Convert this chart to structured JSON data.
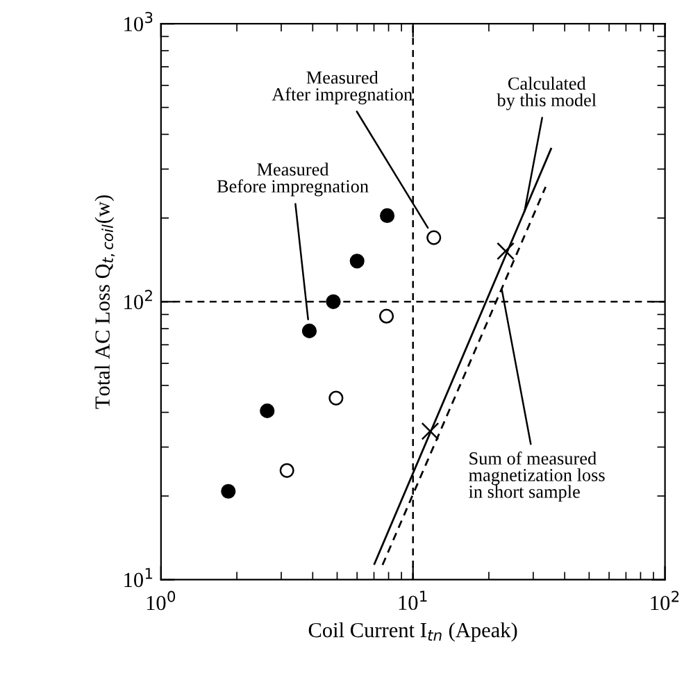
{
  "chart_data": {
    "type": "scatter",
    "xlabel": "Coil Current I$_{tn}$ (Apeak)",
    "ylabel": "Total AC Loss Q$_{t,coil}$(w)",
    "log": "xy",
    "xlim": [
      1,
      100
    ],
    "ylim": [
      10,
      1000
    ],
    "xticks": [
      {
        "value": 1,
        "label": "10$^{0}$"
      },
      {
        "value": 10,
        "label": "10$^{1}$"
      },
      {
        "value": 100,
        "label": "10$^{2}$"
      }
    ],
    "yticks": [
      {
        "value": 10,
        "label": "10$^{1}$"
      },
      {
        "value": 100,
        "label": "10$^{2}$"
      },
      {
        "value": 1000,
        "label": "10$^{3}$"
      }
    ],
    "grid": false,
    "series": [
      {
        "type": "scatter",
        "marker": "circle",
        "color": "#000000",
        "x": [
          1.85,
          2.64,
          3.88,
          4.83,
          6.0,
          7.9
        ],
        "values": [
          20.8,
          40.5,
          78.5,
          100,
          140,
          204
        ]
      },
      {
        "type": "scatter",
        "marker": "circle",
        "color": "#ffffff",
        "x": [
          3.16,
          4.95,
          7.85,
          12.1
        ],
        "values": [
          24.7,
          45,
          88.7,
          170
        ]
      },
      {
        "type": "line",
        "marker": "none",
        "line_style": "solid",
        "color": "#000000",
        "x": [
          7.03,
          35.3
        ],
        "values": [
          11.4,
          355
        ]
      },
      {
        "type": "scatter",
        "marker": "cross",
        "color": "#000000",
        "x": [
          11.7,
          23.3
        ],
        "values": [
          34.2,
          152
        ]
      },
      {
        "type": "line",
        "marker": "none",
        "line_style": "dashed",
        "color": "#000000",
        "x": [
          7.57,
          33.6
        ],
        "values": [
          11.3,
          259
        ]
      }
    ],
    "ref_lines": [
      {
        "axis": "x",
        "value": 10,
        "line_style": "dashed",
        "color": "#000000"
      },
      {
        "axis": "y",
        "value": 100,
        "line_style": "dashed",
        "color": "#000000"
      }
    ],
    "annotations": [
      {
        "text": "Measured\nBefore impregnation",
        "x": 3.88,
        "y": 78.5
      },
      {
        "text": "Measured\nAfter impregnation",
        "x": 12.1,
        "y": 170
      },
      {
        "text": "Calculated\nby this model",
        "x": 27.7,
        "y": 211
      },
      {
        "text": "Sum of measured\nmagnetization loss\nin short sample",
        "x": 22.5,
        "y": 111
      }
    ]
  }
}
